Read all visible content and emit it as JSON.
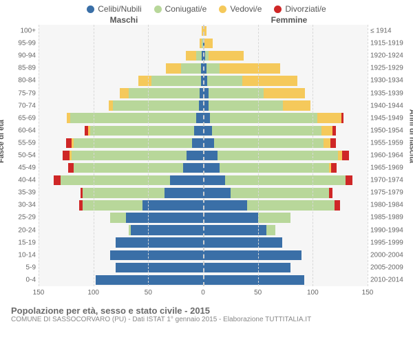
{
  "legend": [
    {
      "label": "Celibi/Nubili",
      "color": "#3a6fa7"
    },
    {
      "label": "Coniugati/e",
      "color": "#b8d79a"
    },
    {
      "label": "Vedovi/e",
      "color": "#f5c95b"
    },
    {
      "label": "Divorziati/e",
      "color": "#cf2727"
    }
  ],
  "gender": {
    "male": "Maschi",
    "female": "Femmine"
  },
  "axis_labels": {
    "left": "Fasce di età",
    "right": "Anni di nascita"
  },
  "xaxis": {
    "max": 150,
    "ticks": [
      150,
      100,
      50,
      0,
      50,
      100,
      150
    ]
  },
  "colors": {
    "bg": "#ffffff",
    "plot_bg": "#f6f6f6",
    "grid": "#d8d8d8",
    "center": "#cfcfcf",
    "text": "#666666"
  },
  "footer": {
    "title": "Popolazione per età, sesso e stato civile - 2015",
    "sub": "COMUNE DI SASSOCORVARO (PU) - Dati ISTAT 1° gennaio 2015 - Elaborazione TUTTITALIA.IT"
  },
  "rows": [
    {
      "age": "0-4",
      "birth": "2010-2014",
      "m": [
        98,
        0,
        0,
        0
      ],
      "f": [
        92,
        0,
        0,
        0
      ]
    },
    {
      "age": "5-9",
      "birth": "2005-2009",
      "m": [
        80,
        0,
        0,
        0
      ],
      "f": [
        80,
        0,
        0,
        0
      ]
    },
    {
      "age": "10-14",
      "birth": "2000-2004",
      "m": [
        85,
        0,
        0,
        0
      ],
      "f": [
        90,
        0,
        0,
        0
      ]
    },
    {
      "age": "15-19",
      "birth": "1995-1999",
      "m": [
        80,
        0,
        0,
        0
      ],
      "f": [
        72,
        0,
        0,
        0
      ]
    },
    {
      "age": "20-24",
      "birth": "1990-1994",
      "m": [
        66,
        2,
        0,
        0
      ],
      "f": [
        58,
        8,
        0,
        0
      ]
    },
    {
      "age": "25-29",
      "birth": "1985-1989",
      "m": [
        70,
        15,
        0,
        0
      ],
      "f": [
        50,
        30,
        0,
        0
      ]
    },
    {
      "age": "30-34",
      "birth": "1980-1984",
      "m": [
        55,
        55,
        0,
        3
      ],
      "f": [
        40,
        80,
        0,
        5
      ]
    },
    {
      "age": "35-39",
      "birth": "1975-1979",
      "m": [
        35,
        75,
        0,
        2
      ],
      "f": [
        25,
        90,
        0,
        3
      ]
    },
    {
      "age": "40-44",
      "birth": "1970-1974",
      "m": [
        30,
        100,
        0,
        6
      ],
      "f": [
        20,
        110,
        0,
        6
      ]
    },
    {
      "age": "45-49",
      "birth": "1965-1969",
      "m": [
        18,
        100,
        0,
        5
      ],
      "f": [
        15,
        100,
        2,
        5
      ]
    },
    {
      "age": "50-54",
      "birth": "1960-1964",
      "m": [
        15,
        105,
        2,
        6
      ],
      "f": [
        13,
        110,
        4,
        6
      ]
    },
    {
      "age": "55-59",
      "birth": "1955-1959",
      "m": [
        10,
        108,
        2,
        5
      ],
      "f": [
        10,
        100,
        6,
        5
      ]
    },
    {
      "age": "60-64",
      "birth": "1950-1954",
      "m": [
        8,
        95,
        2,
        3
      ],
      "f": [
        8,
        100,
        10,
        3
      ]
    },
    {
      "age": "65-69",
      "birth": "1945-1949",
      "m": [
        6,
        115,
        3,
        0
      ],
      "f": [
        6,
        98,
        22,
        2
      ]
    },
    {
      "age": "70-74",
      "birth": "1940-1944",
      "m": [
        4,
        78,
        4,
        0
      ],
      "f": [
        5,
        68,
        25,
        0
      ]
    },
    {
      "age": "75-79",
      "birth": "1935-1939",
      "m": [
        3,
        65,
        8,
        0
      ],
      "f": [
        5,
        50,
        38,
        0
      ]
    },
    {
      "age": "80-84",
      "birth": "1930-1934",
      "m": [
        2,
        45,
        12,
        0
      ],
      "f": [
        4,
        32,
        50,
        0
      ]
    },
    {
      "age": "85-89",
      "birth": "1925-1929",
      "m": [
        2,
        18,
        14,
        0
      ],
      "f": [
        3,
        12,
        55,
        0
      ]
    },
    {
      "age": "90-94",
      "birth": "1920-1924",
      "m": [
        1,
        5,
        10,
        0
      ],
      "f": [
        2,
        3,
        32,
        0
      ]
    },
    {
      "age": "95-99",
      "birth": "1915-1919",
      "m": [
        0,
        1,
        2,
        0
      ],
      "f": [
        1,
        0,
        8,
        0
      ]
    },
    {
      "age": "100+",
      "birth": "≤ 1914",
      "m": [
        0,
        0,
        1,
        0
      ],
      "f": [
        0,
        0,
        3,
        0
      ]
    }
  ]
}
